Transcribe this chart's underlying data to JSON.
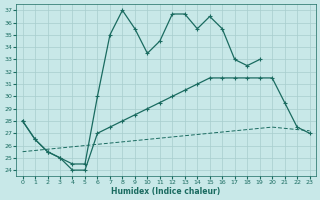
{
  "xlabel": "Humidex (Indice chaleur)",
  "bg_color": "#c8e8e8",
  "grid_color": "#a8cece",
  "line_color": "#1a6b60",
  "xlim": [
    -0.5,
    23.5
  ],
  "ylim": [
    23.5,
    37.5
  ],
  "yticks": [
    24,
    25,
    26,
    27,
    28,
    29,
    30,
    31,
    32,
    33,
    34,
    35,
    36,
    37
  ],
  "xticks": [
    0,
    1,
    2,
    3,
    4,
    5,
    6,
    7,
    8,
    9,
    10,
    11,
    12,
    13,
    14,
    15,
    16,
    17,
    18,
    19,
    20,
    21,
    22,
    23
  ],
  "line1_x": [
    0,
    1,
    2,
    3,
    4,
    5,
    6,
    7,
    8,
    9,
    10,
    11,
    12,
    13,
    14,
    15,
    16,
    17,
    18,
    19
  ],
  "line1_y": [
    28,
    26.5,
    25.5,
    25.0,
    24.5,
    24.5,
    30.0,
    35.0,
    37.0,
    35.5,
    33.5,
    34.5,
    36.7,
    36.7,
    35.5,
    36.5,
    35.5,
    33.0,
    32.5,
    33.0
  ],
  "line2_x": [
    0,
    1,
    2,
    3,
    4,
    5,
    6,
    7,
    8,
    9,
    10,
    11,
    12,
    13,
    14,
    15,
    16,
    17,
    18,
    19,
    20,
    21,
    22,
    23
  ],
  "line2_y": [
    28,
    26.5,
    25.5,
    25.0,
    24.0,
    24.0,
    27.0,
    27.5,
    28.0,
    28.5,
    29.0,
    29.5,
    30.0,
    30.5,
    31.0,
    31.5,
    31.5,
    31.5,
    31.5,
    31.5,
    31.5,
    29.5,
    27.5,
    27.0
  ],
  "line3_x": [
    0,
    1,
    2,
    3,
    4,
    5,
    6,
    7,
    8,
    9,
    10,
    11,
    12,
    13,
    14,
    15,
    16,
    17,
    18,
    19,
    20,
    21,
    22,
    23
  ],
  "line3_y": [
    25.5,
    25.6,
    25.7,
    25.8,
    25.9,
    26.0,
    26.1,
    26.2,
    26.3,
    26.4,
    26.5,
    26.6,
    26.7,
    26.8,
    26.9,
    27.0,
    27.1,
    27.2,
    27.3,
    27.4,
    27.5,
    27.4,
    27.3,
    27.2
  ]
}
